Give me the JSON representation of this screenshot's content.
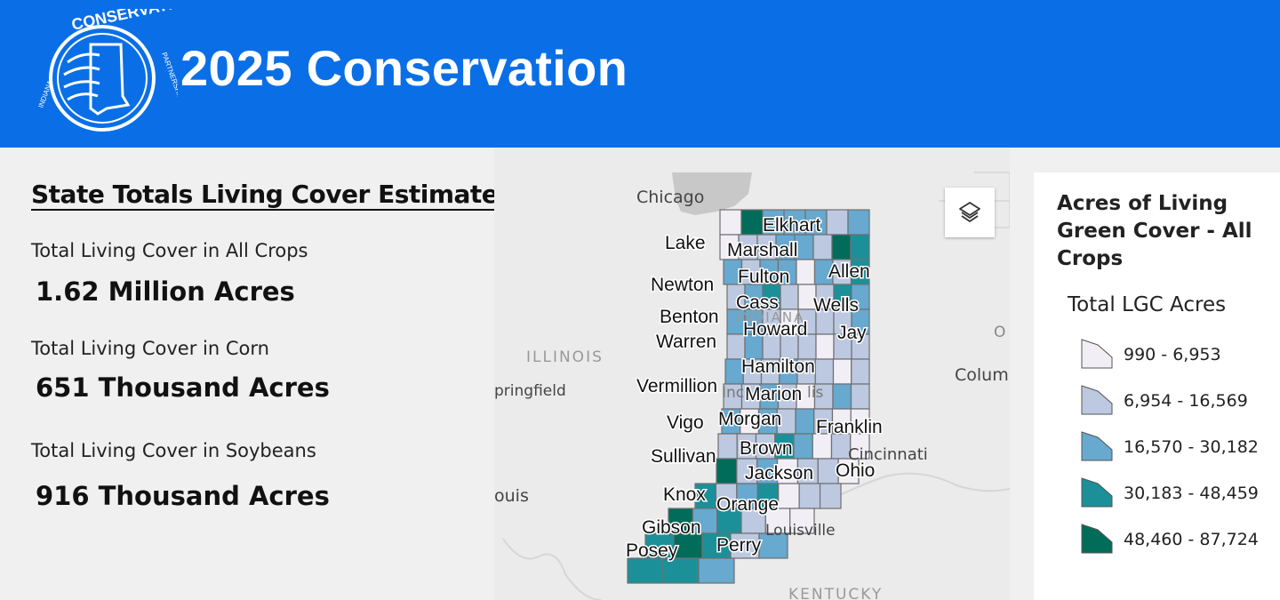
{
  "header": {
    "title": "2025 Conservation",
    "logo_text_top": "CONSERVATION",
    "logo_text_left": "INDIANA",
    "logo_text_right": "PARTNERSHIP"
  },
  "stats": {
    "heading": "State Totals Living Cover Estimates",
    "items": [
      {
        "label": "Total Living Cover in All Crops",
        "value": "1.62 Million Acres"
      },
      {
        "label": "Total Living Cover in Corn",
        "value": "651 Thousand Acres"
      },
      {
        "label": "Total Living Cover in Soybeans",
        "value": "916 Thousand Acres"
      }
    ]
  },
  "map": {
    "basemap_labels": {
      "chicago": "Chicago",
      "illinois": "ILLINOIS",
      "springfield": "pringfield",
      "st_louis": "ouis",
      "columbus": "Colum",
      "o_label": "O",
      "cincinnati": "Cincinnati",
      "louisville": "Louisville",
      "kentucky": "KENTUCKY",
      "indiana": "INDIANA",
      "indianapolis_a": "Inc",
      "indianapolis_b": "lis"
    },
    "county_labels": [
      "Elkhart",
      "Lake",
      "Marshall",
      "Allen",
      "Newton",
      "Fulton",
      "Cass",
      "Wells",
      "Benton",
      "Howard",
      "Jay",
      "Warren",
      "Hamilton",
      "Vermillion",
      "Marion",
      "Vigo",
      "Morgan",
      "Franklin",
      "Brown",
      "Sullivan",
      "Jackson",
      "Ohio",
      "Knox",
      "Orange",
      "Gibson",
      "Posey",
      "Perry"
    ],
    "layers_icon": "layers-icon"
  },
  "legend": {
    "title": "Acres of Living Green Cover - All Crops",
    "subtitle": "Total LGC Acres",
    "classes": [
      {
        "label": "990 - 6,953",
        "color": "#f1eef6"
      },
      {
        "label": "6,954 - 16,569",
        "color": "#bdc9e1"
      },
      {
        "label": "16,570 - 30,182",
        "color": "#67a9cf"
      },
      {
        "label": "30,183 - 48,459",
        "color": "#1c9099"
      },
      {
        "label": "48,460 - 87,724",
        "color": "#016c59"
      }
    ]
  },
  "colors": {
    "header_bg": "#0a6fe6",
    "class1": "#f1eef6",
    "class2": "#bdc9e1",
    "class3": "#67a9cf",
    "class4": "#1c9099",
    "class5": "#016c59"
  }
}
